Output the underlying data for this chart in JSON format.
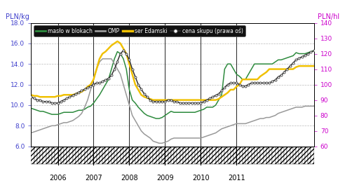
{
  "title_left": "PLN/kg",
  "title_right": "PLN/hl",
  "ylim_left": [
    6.0,
    18.0
  ],
  "ylim_right": [
    60,
    140
  ],
  "yticks_left": [
    6.0,
    8.0,
    10.0,
    12.0,
    14.0,
    16.0,
    18.0
  ],
  "yticks_right": [
    60,
    70,
    80,
    90,
    100,
    110,
    120,
    130,
    140
  ],
  "legend_labels": [
    "masło w blokach",
    "OMP",
    "ser Edamski",
    "cena skupu (prawa oś)"
  ],
  "colors": {
    "maslo": "#2e8b3e",
    "omp": "#999999",
    "edamski": "#f0c000",
    "skup": "#333333"
  },
  "tick_color_left": "#4040cc",
  "tick_color_right": "#cc00cc",
  "x_year_labels": [
    "2006",
    "2007",
    "2008",
    "2009",
    "2010",
    "2011"
  ],
  "maslo": [
    9.7,
    9.6,
    9.5,
    9.4,
    9.4,
    9.3,
    9.2,
    9.1,
    9.1,
    9.1,
    9.2,
    9.3,
    9.3,
    9.3,
    9.3,
    9.4,
    9.5,
    9.5,
    9.6,
    9.8,
    9.9,
    10.2,
    10.6,
    11.0,
    11.5,
    12.0,
    12.5,
    13.5,
    14.5,
    15.2,
    15.0,
    14.5,
    13.5,
    11.5,
    10.5,
    10.2,
    9.8,
    9.5,
    9.2,
    9.0,
    8.9,
    8.8,
    8.7,
    8.7,
    8.8,
    9.0,
    9.2,
    9.4,
    9.3,
    9.3,
    9.3,
    9.3,
    9.3,
    9.3,
    9.3,
    9.3,
    9.4,
    9.5,
    9.6,
    9.8,
    9.8,
    9.8,
    10.0,
    10.5,
    11.0,
    13.5,
    14.0,
    14.0,
    13.5,
    13.0,
    12.8,
    12.5,
    12.5,
    13.0,
    13.5,
    14.0,
    14.0,
    14.0,
    14.0,
    14.0,
    14.0,
    14.0,
    14.2,
    14.4,
    14.4,
    14.5,
    14.6,
    14.7,
    14.8,
    15.1,
    15.0,
    15.0,
    15.0,
    15.1,
    15.2,
    15.3
  ],
  "omp": [
    7.3,
    7.4,
    7.5,
    7.6,
    7.7,
    7.8,
    7.9,
    8.0,
    8.0,
    8.1,
    8.2,
    8.3,
    8.3,
    8.4,
    8.5,
    8.7,
    8.9,
    9.2,
    9.8,
    10.5,
    11.5,
    12.5,
    13.5,
    14.2,
    14.5,
    14.5,
    14.5,
    14.5,
    14.0,
    13.5,
    13.0,
    12.0,
    11.0,
    10.0,
    9.0,
    8.5,
    8.0,
    7.5,
    7.2,
    7.0,
    6.8,
    6.5,
    6.4,
    6.3,
    6.3,
    6.4,
    6.5,
    6.7,
    6.8,
    6.8,
    6.8,
    6.8,
    6.8,
    6.8,
    6.8,
    6.8,
    6.8,
    6.8,
    6.9,
    7.0,
    7.1,
    7.2,
    7.3,
    7.5,
    7.7,
    7.8,
    7.9,
    8.0,
    8.1,
    8.2,
    8.2,
    8.2,
    8.2,
    8.3,
    8.4,
    8.5,
    8.6,
    8.7,
    8.7,
    8.8,
    8.8,
    8.9,
    9.0,
    9.2,
    9.3,
    9.4,
    9.5,
    9.6,
    9.7,
    9.8,
    9.8,
    9.8,
    9.9,
    9.9,
    9.9,
    9.9
  ],
  "edamski": [
    11.0,
    10.9,
    10.9,
    10.8,
    10.8,
    10.8,
    10.8,
    10.8,
    10.8,
    10.9,
    10.9,
    11.0,
    11.0,
    11.0,
    11.0,
    11.1,
    11.2,
    11.3,
    11.5,
    11.8,
    12.0,
    12.5,
    13.5,
    14.5,
    15.0,
    15.2,
    15.5,
    15.8,
    16.0,
    16.2,
    16.0,
    15.5,
    15.0,
    14.0,
    13.0,
    12.0,
    11.5,
    11.0,
    10.8,
    10.7,
    10.6,
    10.5,
    10.5,
    10.5,
    10.5,
    10.5,
    10.5,
    10.5,
    10.5,
    10.5,
    10.5,
    10.5,
    10.5,
    10.5,
    10.5,
    10.5,
    10.5,
    10.5,
    10.5,
    10.5,
    10.5,
    10.5,
    10.5,
    10.6,
    10.8,
    11.0,
    11.2,
    11.5,
    11.5,
    11.8,
    12.0,
    12.5,
    12.5,
    12.5,
    12.5,
    12.5,
    12.5,
    12.8,
    13.0,
    13.2,
    13.5,
    13.5,
    13.5,
    13.5,
    13.5,
    13.5,
    13.5,
    13.5,
    13.5,
    13.7,
    13.8,
    13.8,
    13.8,
    13.8,
    13.8,
    13.8
  ],
  "skup": [
    92,
    91,
    90,
    90,
    89,
    89,
    89,
    88,
    88,
    88,
    89,
    90,
    91,
    92,
    93,
    94,
    95,
    96,
    97,
    98,
    99,
    100,
    101,
    101,
    102,
    103,
    104,
    106,
    110,
    115,
    120,
    122,
    120,
    116,
    110,
    105,
    100,
    97,
    94,
    92,
    90,
    89,
    89,
    89,
    89,
    89,
    90,
    90,
    89,
    89,
    88,
    88,
    88,
    88,
    88,
    88,
    88,
    88,
    89,
    90,
    91,
    92,
    93,
    94,
    96,
    98,
    100,
    101,
    101,
    101,
    100,
    99,
    99,
    100,
    101,
    101,
    101,
    101,
    101,
    101,
    101,
    102,
    103,
    105,
    106,
    108,
    110,
    112,
    114,
    116,
    117,
    118,
    119,
    120,
    121,
    122
  ],
  "n_months": 96,
  "year_tick_positions": [
    9,
    21,
    33,
    45,
    57,
    69
  ]
}
